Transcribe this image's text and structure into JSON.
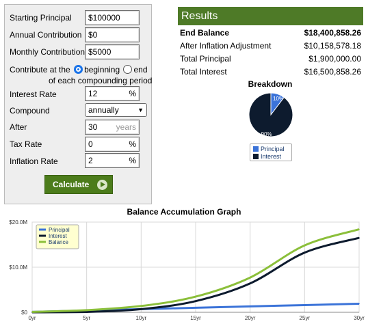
{
  "form": {
    "starting_principal": {
      "label": "Starting Principal",
      "value": "$100000"
    },
    "annual_contribution": {
      "label": "Annual Contribution",
      "value": "$0"
    },
    "monthly_contribution": {
      "label": "Monthly Contribution",
      "value": "$5000"
    },
    "contribute": {
      "label": "Contribute at the",
      "option_beginning": "beginning",
      "option_end": "end",
      "suffix": "of each compounding period",
      "selected": "beginning"
    },
    "interest_rate": {
      "label": "Interest Rate",
      "value": "12",
      "unit": "%"
    },
    "compound": {
      "label": "Compound",
      "value": "annually"
    },
    "after": {
      "label": "After",
      "value": "30",
      "unit": "years"
    },
    "tax_rate": {
      "label": "Tax Rate",
      "value": "0",
      "unit": "%"
    },
    "inflation_rate": {
      "label": "Inflation Rate",
      "value": "2",
      "unit": "%"
    },
    "calculate_label": "Calculate"
  },
  "results": {
    "title": "Results",
    "rows": [
      {
        "label": "End Balance",
        "value": "$18,400,858.26"
      },
      {
        "label": "After Inflation Adjustment",
        "value": "$10,158,578.18"
      },
      {
        "label": "Total Principal",
        "value": "$1,900,000.00"
      },
      {
        "label": "Total Interest",
        "value": "$16,500,858.26"
      }
    ]
  },
  "breakdown": {
    "title": "Breakdown",
    "slices": [
      {
        "name": "Principal",
        "label": "10%",
        "fraction": 0.1033,
        "color": "#3b73d8"
      },
      {
        "name": "Interest",
        "label": "90%",
        "fraction": 0.8967,
        "color": "#0d1b2e"
      }
    ]
  },
  "chart_data": {
    "type": "line",
    "title": "Balance Accumulation Graph",
    "x_ticks": [
      "0yr",
      "5yr",
      "10yr",
      "15yr",
      "20yr",
      "25yr",
      "30yr"
    ],
    "y_ticks": [
      "$0",
      "$10.0M",
      "$20.0M"
    ],
    "xlim": [
      0,
      30
    ],
    "ylim": [
      0,
      20000000
    ],
    "grid": true,
    "legend_position": "top-left",
    "x": [
      0,
      5,
      10,
      15,
      20,
      25,
      30
    ],
    "series": [
      {
        "name": "Principal",
        "color": "#3b73d8",
        "values": [
          100000,
          400000,
          700000,
          1000000,
          1300000,
          1600000,
          1900000
        ]
      },
      {
        "name": "Interest",
        "color": "#0d1b2e",
        "values": [
          0,
          76000,
          694000,
          2470000,
          6394000,
          13230000,
          16500858
        ]
      },
      {
        "name": "Balance",
        "color": "#8bbf3a",
        "values": [
          100000,
          476000,
          1394000,
          3470000,
          7694000,
          14830000,
          18400858
        ]
      }
    ]
  }
}
